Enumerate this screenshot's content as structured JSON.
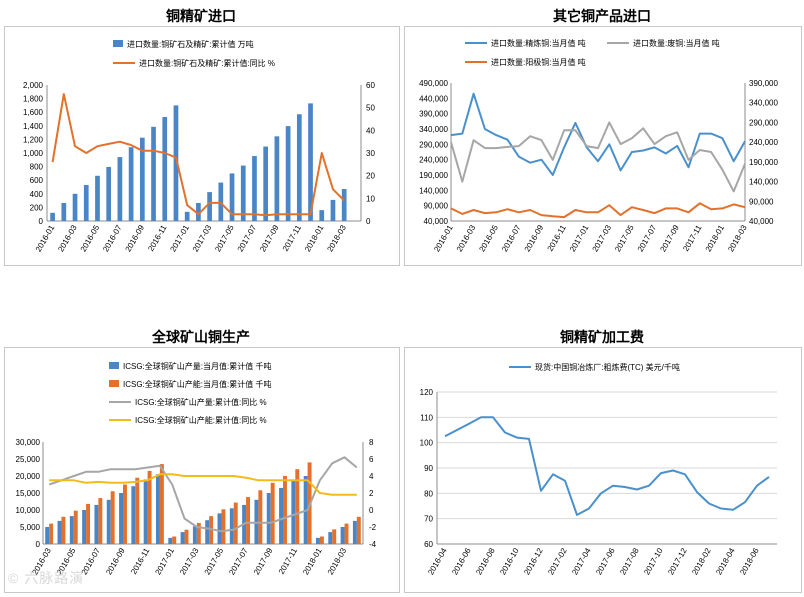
{
  "colors": {
    "blue": "#4a86c5",
    "orange": "#e3712b",
    "gray": "#a6a6a6",
    "yellow": "#f2bb1c",
    "line_blue": "#4a90cc",
    "axis": "#8c8c8c",
    "grid": "#d9d9d9"
  },
  "watermark": "© 六脉路演",
  "chart_data": [
    {
      "id": "c1",
      "type": "bar",
      "title": "铜精矿进口",
      "categories": [
        "2016-01",
        "2016-02",
        "2016-03",
        "2016-04",
        "2016-05",
        "2016-06",
        "2016-07",
        "2016-08",
        "2016-09",
        "2016-10",
        "2016-11",
        "2016-12",
        "2017-01",
        "2017-02",
        "2017-03",
        "2017-04",
        "2017-05",
        "2017-06",
        "2017-07",
        "2017-08",
        "2017-09",
        "2017-10",
        "2017-11",
        "2017-12",
        "2018-01",
        "2018-02",
        "2018-03",
        "2018-04"
      ],
      "x_tick_labels": [
        "2016-01",
        "2016-03",
        "2016-05",
        "2016-07",
        "2016-09",
        "2016-11",
        "2017-01",
        "2017-03",
        "2017-05",
        "2017-07",
        "2017-09",
        "2017-11",
        "2018-01",
        "2018-03"
      ],
      "series": [
        {
          "name": "进口数量:铜矿石及精矿:累计值 万吨",
          "type": "bar",
          "axis": "left",
          "values": [
            120,
            265,
            400,
            530,
            665,
            795,
            940,
            1085,
            1225,
            1385,
            1530,
            1700,
            135,
            265,
            425,
            565,
            700,
            815,
            955,
            1095,
            1245,
            1395,
            1570,
            1730,
            160,
            310,
            470,
            null
          ]
        },
        {
          "name": "进口数量:铜矿石及精矿:累计值:同比 %",
          "type": "line",
          "axis": "right",
          "values": [
            26,
            56,
            33,
            30,
            33,
            34,
            35,
            33.5,
            31,
            31,
            30,
            28,
            7,
            3,
            8,
            8,
            3,
            3,
            3,
            2.5,
            3,
            3,
            3,
            3,
            30,
            14,
            9,
            null
          ]
        }
      ],
      "ylim_left": [
        0,
        2000
      ],
      "yticks_left": [
        0,
        200,
        400,
        600,
        800,
        1000,
        1200,
        1400,
        1600,
        1800,
        2000
      ],
      "ytick_labels_left": [
        "0",
        "200",
        "400",
        "600",
        "800",
        "1,000",
        "1,200",
        "1,400",
        "1,600",
        "1,800",
        "2,000"
      ],
      "ylim_right": [
        0,
        60
      ],
      "yticks_right": [
        0,
        10,
        20,
        30,
        40,
        50,
        60
      ]
    },
    {
      "id": "c2",
      "type": "line",
      "title": "其它铜产品进口",
      "categories": [
        "2016-01",
        "2016-02",
        "2016-03",
        "2016-04",
        "2016-05",
        "2016-06",
        "2016-07",
        "2016-08",
        "2016-09",
        "2016-10",
        "2016-11",
        "2016-12",
        "2017-01",
        "2017-02",
        "2017-03",
        "2017-04",
        "2017-05",
        "2017-06",
        "2017-07",
        "2017-08",
        "2017-09",
        "2017-10",
        "2017-11",
        "2017-12",
        "2018-01",
        "2018-02",
        "2018-03"
      ],
      "x_tick_labels": [
        "2016-01",
        "2016-03",
        "2016-05",
        "2016-07",
        "2016-09",
        "2016-11",
        "2017-01",
        "2017-03",
        "2017-05",
        "2017-07",
        "2017-09",
        "2017-11",
        "2018-01",
        "2018-03"
      ],
      "series": [
        {
          "name": "进口数量:精炼铜:当月值 吨",
          "axis": "left",
          "values": [
            320000,
            325000,
            455000,
            340000,
            320000,
            305000,
            250000,
            230000,
            240000,
            190000,
            280000,
            360000,
            280000,
            235000,
            290000,
            205000,
            265000,
            270000,
            280000,
            260000,
            285000,
            215000,
            325000,
            325000,
            310000,
            235000,
            300000
          ]
        },
        {
          "name": "进口数量:废铜:当月值 吨",
          "axis": "right",
          "values": [
            240000,
            140000,
            245000,
            225000,
            225000,
            228000,
            230000,
            255000,
            245000,
            195000,
            270000,
            270000,
            230000,
            225000,
            290000,
            235000,
            250000,
            275000,
            235000,
            255000,
            265000,
            195000,
            220000,
            215000,
            170000,
            115000,
            185000
          ]
        },
        {
          "name": "进口数量:阳极铜:当月值 吨",
          "axis": "right",
          "values": [
            72000,
            58000,
            68000,
            60000,
            62000,
            70000,
            62000,
            68000,
            55000,
            52000,
            50000,
            68000,
            62000,
            62000,
            80000,
            55000,
            75000,
            68000,
            60000,
            72000,
            72000,
            62000,
            85000,
            70000,
            72000,
            82000,
            75000
          ]
        }
      ],
      "ylim_left": [
        40000,
        490000
      ],
      "yticks_left": [
        40000,
        90000,
        140000,
        190000,
        240000,
        290000,
        340000,
        390000,
        440000,
        490000
      ],
      "ytick_labels_left": [
        "40,000",
        "90,000",
        "140,000",
        "190,000",
        "240,000",
        "290,000",
        "340,000",
        "390,000",
        "440,000",
        "490,000"
      ],
      "ylim_right": [
        40000,
        390000
      ],
      "yticks_right": [
        40000,
        90000,
        140000,
        190000,
        240000,
        290000,
        340000,
        390000
      ],
      "ytick_labels_right": [
        "40,000",
        "90,000",
        "140,000",
        "190,000",
        "240,000",
        "290,000",
        "340,000",
        "390,000"
      ]
    },
    {
      "id": "c3",
      "type": "bar",
      "title": "全球矿山铜生产",
      "categories": [
        "2016-03",
        "2016-04",
        "2016-05",
        "2016-06",
        "2016-07",
        "2016-08",
        "2016-09",
        "2016-10",
        "2016-11",
        "2016-12",
        "2017-01",
        "2017-02",
        "2017-03",
        "2017-04",
        "2017-05",
        "2017-06",
        "2017-07",
        "2017-08",
        "2017-09",
        "2017-10",
        "2017-11",
        "2017-12",
        "2018-01",
        "2018-02",
        "2018-03",
        "2018-04"
      ],
      "x_tick_labels": [
        "2016-03",
        "2016-05",
        "2016-07",
        "2016-09",
        "2016-11",
        "2017-01",
        "2017-03",
        "2017-05",
        "2017-07",
        "2017-09",
        "2017-11",
        "2018-01",
        "2018-03"
      ],
      "series": [
        {
          "name": "ICSG:全球铜矿山产量:当月值:累计值 千吨",
          "type": "bar",
          "axis": "left",
          "values": [
            5000,
            6800,
            8200,
            10000,
            11500,
            13000,
            15000,
            17000,
            19000,
            20500,
            1800,
            3500,
            5200,
            7000,
            9000,
            10500,
            11500,
            13000,
            15000,
            16500,
            18500,
            20000,
            1800,
            3500,
            5000,
            6800
          ]
        },
        {
          "name": "ICSG:全球铜矿山产能:当月值:累计值 千吨",
          "type": "bar",
          "axis": "left",
          "values": [
            6000,
            8000,
            9800,
            11800,
            13500,
            15500,
            17500,
            19500,
            21500,
            23500,
            2200,
            4200,
            6200,
            8200,
            10200,
            12200,
            13800,
            15800,
            18000,
            20000,
            22000,
            24000,
            2200,
            4300,
            6000,
            8000
          ]
        },
        {
          "name": "ICSG:全球铜矿山产量:累计值:同比 %",
          "type": "line",
          "axis": "right",
          "values": [
            3,
            3.5,
            4,
            4.5,
            4.5,
            4.8,
            4.8,
            4.8,
            5,
            5.2,
            3,
            -1,
            -2,
            -2.2,
            -2.5,
            -2.3,
            -1.5,
            -1.5,
            -1.5,
            -1,
            -0.5,
            0,
            3.5,
            5.5,
            6.2,
            5
          ]
        },
        {
          "name": "ICSG:全球铜矿山产能:累计值:同比 %",
          "type": "line",
          "axis": "right",
          "values": [
            3.5,
            3.5,
            3.5,
            3.2,
            3.3,
            3.2,
            3.2,
            3.3,
            3.5,
            4.2,
            4.2,
            4,
            4,
            4,
            4,
            4,
            3.8,
            3.5,
            3.5,
            3.5,
            3.5,
            3.5,
            2,
            1.8,
            1.8,
            1.8
          ]
        }
      ],
      "ylim_left": [
        0,
        30000
      ],
      "yticks_left": [
        0,
        5000,
        10000,
        15000,
        20000,
        25000,
        30000
      ],
      "ytick_labels_left": [
        "0",
        "5,000",
        "10,000",
        "15,000",
        "20,000",
        "25,000",
        "30,000"
      ],
      "ylim_right": [
        -4,
        8
      ],
      "yticks_right": [
        -4,
        -2,
        0,
        2,
        4,
        6,
        8
      ]
    },
    {
      "id": "c4",
      "type": "line",
      "title": "铜精矿加工费",
      "categories": [
        "2016-04",
        "2016-05",
        "2016-06",
        "2016-07",
        "2016-08",
        "2016-09",
        "2016-10",
        "2016-11",
        "2016-12",
        "2017-01",
        "2017-02",
        "2017-03",
        "2017-04",
        "2017-05",
        "2017-06",
        "2017-07",
        "2017-08",
        "2017-09",
        "2017-10",
        "2017-11",
        "2017-12",
        "2018-01",
        "2018-02",
        "2018-03",
        "2018-04",
        "2018-05",
        "2018-06",
        "2018-07"
      ],
      "x_tick_labels": [
        "2016-04",
        "2016-06",
        "2016-08",
        "2016-10",
        "2016-12",
        "2017-02",
        "2017-04",
        "2017-06",
        "2017-08",
        "2017-10",
        "2017-12",
        "2018-02",
        "2018-04",
        "2018-06"
      ],
      "series": [
        {
          "name": "现货:中国铜冶炼厂:粗炼费(TC) 美元/千吨",
          "values": [
            102.5,
            105,
            107.5,
            110,
            110,
            104,
            102,
            101.5,
            81,
            87.5,
            85,
            71.5,
            74,
            80,
            83,
            82.5,
            81.5,
            83,
            88,
            89,
            87.5,
            80.5,
            76,
            74,
            73.5,
            76.5,
            83,
            86.5
          ]
        }
      ],
      "ylim": [
        60,
        120
      ],
      "yticks": [
        60,
        70,
        80,
        90,
        100,
        110,
        120
      ]
    }
  ]
}
